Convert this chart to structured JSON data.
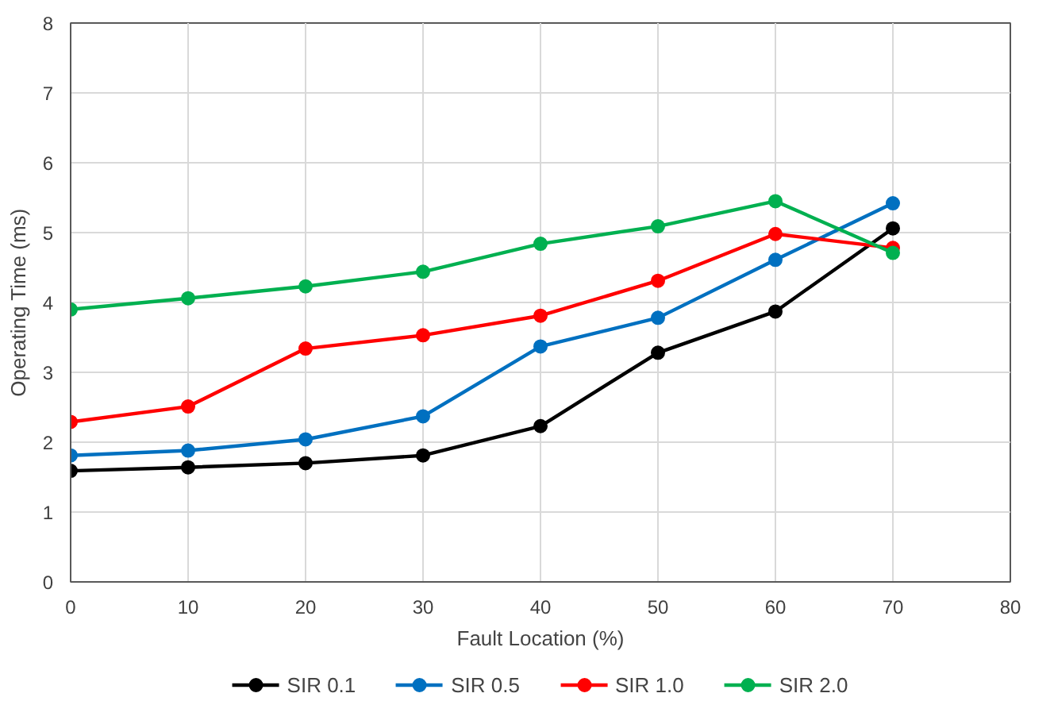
{
  "chart_data": {
    "type": "line",
    "xlabel": "Fault Location (%)",
    "ylabel": "Operating Time (ms)",
    "x": [
      0,
      10,
      20,
      30,
      40,
      50,
      60,
      70
    ],
    "series": [
      {
        "name": "SIR 0.1",
        "color": "#000000",
        "values": [
          1.59,
          1.64,
          1.7,
          1.81,
          2.23,
          3.28,
          3.87,
          5.06
        ]
      },
      {
        "name": "SIR 0.5",
        "color": "#0070c0",
        "values": [
          1.81,
          1.88,
          2.04,
          2.37,
          3.37,
          3.78,
          4.61,
          5.42
        ]
      },
      {
        "name": "SIR 1.0",
        "color": "#ff0000",
        "values": [
          2.29,
          2.51,
          3.34,
          3.53,
          3.81,
          4.31,
          4.98,
          4.78
        ]
      },
      {
        "name": "SIR 2.0",
        "color": "#00b050",
        "values": [
          3.9,
          4.06,
          4.23,
          4.44,
          4.84,
          5.09,
          5.45,
          4.71
        ]
      }
    ],
    "xlim": [
      0,
      80
    ],
    "xticks": [
      0,
      10,
      20,
      30,
      40,
      50,
      60,
      70,
      80
    ],
    "ylim": [
      0,
      8
    ],
    "yticks": [
      0,
      1,
      2,
      3,
      4,
      5,
      6,
      7,
      8
    ],
    "grid": true,
    "legend": "bottom",
    "marker": "circle",
    "line_style": "solid"
  }
}
